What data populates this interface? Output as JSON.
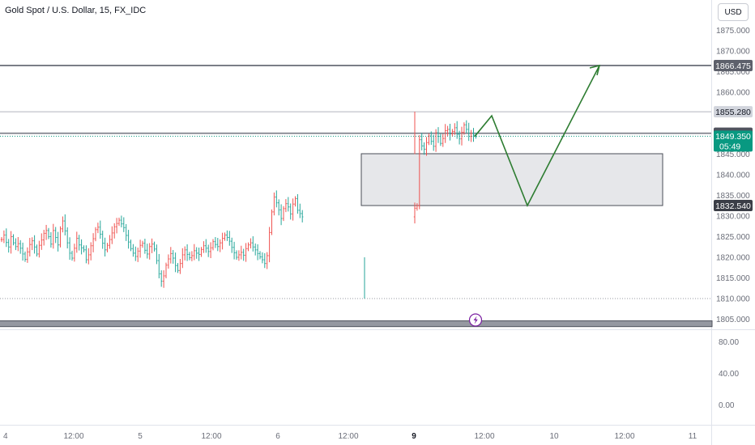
{
  "header": {
    "symbol": "Gold Spot / U.S. Dollar, 15, FX_IDC",
    "currency_button": "USD"
  },
  "colors": {
    "up": "#ef5350",
    "down": "#26a69a",
    "level_line": "#787b86",
    "current_price_bg": "#089981",
    "arrow": "#2e7d32",
    "zone_fill": "#e6e7ea"
  },
  "chart_data": {
    "type": "ohlc",
    "price_axis": {
      "ticks": [
        "1875.000",
        "1870.000",
        "1865.000",
        "1860.000",
        "1855.000",
        "1850.000",
        "1845.000",
        "1840.000",
        "1835.000",
        "1830.000",
        "1825.000",
        "1820.000",
        "1815.000",
        "1810.000",
        "1805.000"
      ],
      "range": [
        1802.6,
        1877.5
      ]
    },
    "indicator_axis": {
      "ticks": [
        "80.00",
        "40.00",
        "0.00"
      ]
    },
    "time_axis": {
      "labels": [
        "4",
        "12:00",
        "5",
        "12:00",
        "6",
        "12:00",
        "9",
        "12:00",
        "10",
        "12:00",
        "11"
      ]
    },
    "price_labels": {
      "level_high": "1866.475",
      "level_mid": "1855.280",
      "level_prev": "1850.064",
      "current_price": "1849.350",
      "countdown": "05:49",
      "zone_low": "1832.540"
    },
    "levels": [
      1866.475,
      1855.28,
      1850.064,
      1849.35,
      1810.0
    ],
    "support_band": [
      1803.2,
      1804.6
    ],
    "demand_zone": {
      "top": 1845.1,
      "bottom": 1832.54
    },
    "projection_path": [
      1849.3,
      1854.3,
      1832.54,
      1866.475
    ],
    "price_series": [
      1824.3,
      1825.4,
      1823.6,
      1822.5,
      1825.0,
      1823.5,
      1822.6,
      1823.3,
      1822.2,
      1820.8,
      1819.5,
      1821.3,
      1823.1,
      1824.0,
      1822.5,
      1820.8,
      1822.9,
      1824.2,
      1825.8,
      1826.5,
      1825.0,
      1823.2,
      1826.5,
      1824.8,
      1823.0,
      1826.9,
      1828.8,
      1826.4,
      1823.5,
      1821.0,
      1819.8,
      1822.2,
      1824.6,
      1823.0,
      1822.3,
      1821.8,
      1819.4,
      1820.6,
      1822.8,
      1824.5,
      1826.7,
      1827.3,
      1825.6,
      1823.4,
      1821.8,
      1822.9,
      1824.3,
      1825.9,
      1827.4,
      1828.2,
      1829.0,
      1828.1,
      1827.2,
      1825.3,
      1823.7,
      1822.1,
      1821.0,
      1820.2,
      1821.5,
      1822.9,
      1823.4,
      1821.7,
      1820.8,
      1822.6,
      1823.2,
      1822.0,
      1819.2,
      1816.0,
      1814.2,
      1815.5,
      1818.1,
      1819.6,
      1820.9,
      1819.8,
      1818.0,
      1816.8,
      1818.5,
      1820.6,
      1821.8,
      1820.7,
      1819.9,
      1820.4,
      1821.6,
      1821.0,
      1820.7,
      1821.9,
      1822.8,
      1822.2,
      1821.4,
      1822.3,
      1823.8,
      1823.1,
      1822.6,
      1823.5,
      1824.6,
      1825.4,
      1824.8,
      1823.9,
      1822.4,
      1821.1,
      1820.0,
      1820.6,
      1821.2,
      1820.5,
      1822.1,
      1823.0,
      1823.5,
      1822.5,
      1821.8,
      1820.9,
      1820.1,
      1819.4,
      1818.5,
      1820.4,
      1826.0,
      1831.0,
      1834.6,
      1833.2,
      1831.5,
      1829.4,
      1831.8,
      1833.0,
      1832.2,
      1830.5,
      1832.9,
      1834.2,
      1831.4,
      1830.6,
      1829.8,
      1831.9,
      1832.5,
      1848.5,
      1847.0,
      1846.2,
      1847.8,
      1849.4,
      1848.1,
      1846.9,
      1850.2,
      1849.3,
      1847.6,
      1848.8,
      1850.7,
      1851.0,
      1849.9,
      1850.5,
      1851.4,
      1849.8,
      1848.7,
      1850.3,
      1852.1,
      1851.0,
      1849.3,
      1850.0,
      1849.6,
      1849.35
    ]
  }
}
